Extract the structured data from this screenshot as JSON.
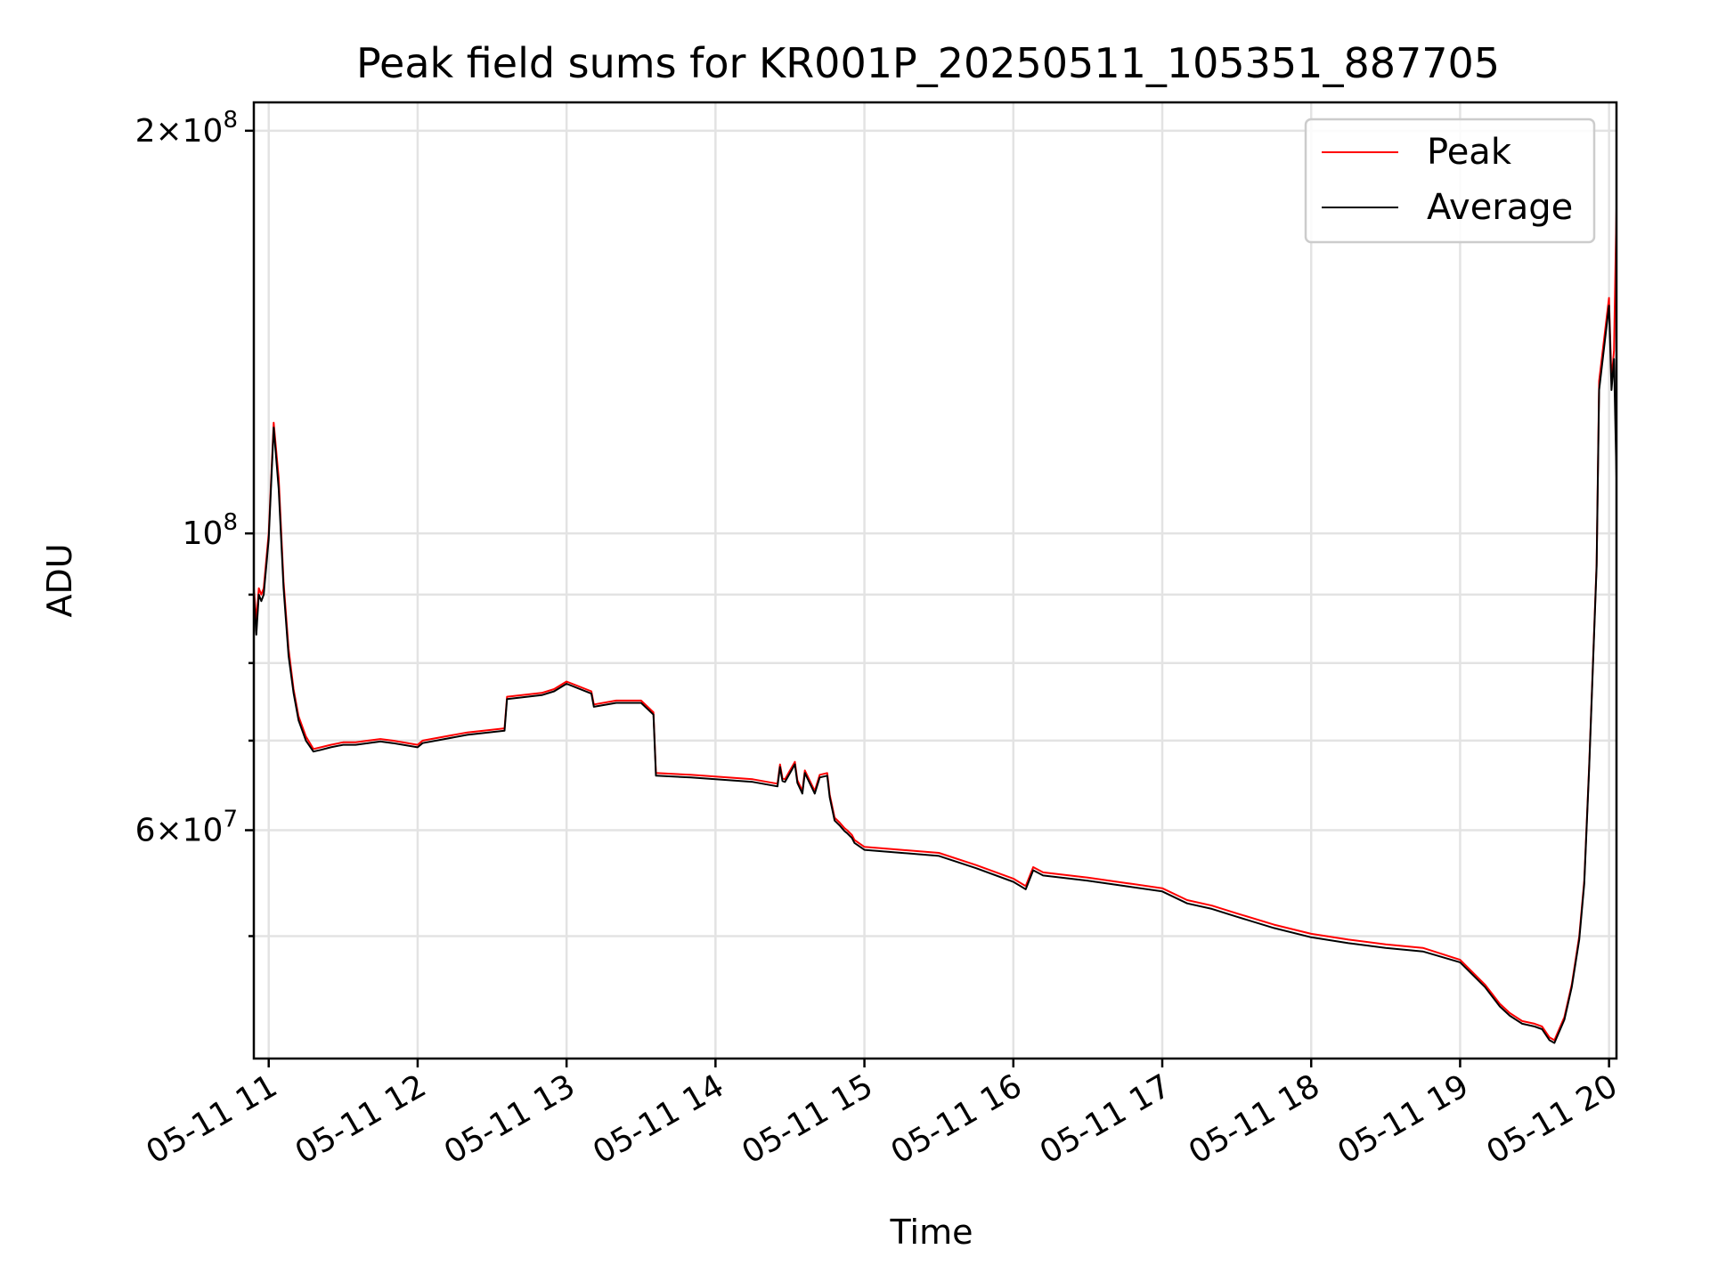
{
  "chart_data": {
    "type": "line",
    "title": "Peak field sums for KR001P_20250511_105351_887705",
    "xlabel": "Time",
    "ylabel": "ADU",
    "yscale": "log",
    "ylim": [
      40500000,
      210000000
    ],
    "xlim": [
      "2025-05-11 10:54",
      "2025-05-11 20:03"
    ],
    "x_ticks": [
      "05-11 11",
      "05-11 12",
      "05-11 13",
      "05-11 14",
      "05-11 15",
      "05-11 16",
      "05-11 17",
      "05-11 18",
      "05-11 19",
      "05-11 20"
    ],
    "y_tick_labels": [
      {
        "value": 200000000,
        "mantissa": "2",
        "exponent": "8"
      },
      {
        "value": 100000000,
        "mantissa": "",
        "exponent": "8"
      },
      {
        "value": 60000000,
        "mantissa": "6",
        "exponent": "7"
      }
    ],
    "y_minor_ticks": [
      50000000,
      70000000,
      80000000,
      90000000
    ],
    "grid": true,
    "legend": "upper right",
    "x": [
      "2025-05-11 10:54",
      "2025-05-11 10:55",
      "2025-05-11 10:56",
      "2025-05-11 10:57",
      "2025-05-11 10:58",
      "2025-05-11 11:00",
      "2025-05-11 11:02",
      "2025-05-11 11:04",
      "2025-05-11 11:06",
      "2025-05-11 11:08",
      "2025-05-11 11:10",
      "2025-05-11 11:12",
      "2025-05-11 11:15",
      "2025-05-11 11:18",
      "2025-05-11 11:21",
      "2025-05-11 11:25",
      "2025-05-11 11:30",
      "2025-05-11 11:35",
      "2025-05-11 11:40",
      "2025-05-11 11:45",
      "2025-05-11 11:50",
      "2025-05-11 12:00",
      "2025-05-11 12:02",
      "2025-05-11 12:20",
      "2025-05-11 12:35",
      "2025-05-11 12:36",
      "2025-05-11 12:50",
      "2025-05-11 12:55",
      "2025-05-11 13:00",
      "2025-05-11 13:10",
      "2025-05-11 13:11",
      "2025-05-11 13:20",
      "2025-05-11 13:30",
      "2025-05-11 13:35",
      "2025-05-11 13:36",
      "2025-05-11 13:50",
      "2025-05-11 14:00",
      "2025-05-11 14:15",
      "2025-05-11 14:25",
      "2025-05-11 14:26",
      "2025-05-11 14:27",
      "2025-05-11 14:28",
      "2025-05-11 14:32",
      "2025-05-11 14:33",
      "2025-05-11 14:35",
      "2025-05-11 14:36",
      "2025-05-11 14:40",
      "2025-05-11 14:42",
      "2025-05-11 14:45",
      "2025-05-11 14:46",
      "2025-05-11 14:48",
      "2025-05-11 14:50",
      "2025-05-11 14:52",
      "2025-05-11 14:53",
      "2025-05-11 14:55",
      "2025-05-11 14:56",
      "2025-05-11 15:00",
      "2025-05-11 15:15",
      "2025-05-11 15:30",
      "2025-05-11 15:45",
      "2025-05-11 16:00",
      "2025-05-11 16:05",
      "2025-05-11 16:08",
      "2025-05-11 16:12",
      "2025-05-11 16:30",
      "2025-05-11 16:45",
      "2025-05-11 17:00",
      "2025-05-11 17:10",
      "2025-05-11 17:20",
      "2025-05-11 17:30",
      "2025-05-11 17:45",
      "2025-05-11 18:00",
      "2025-05-11 18:15",
      "2025-05-11 18:30",
      "2025-05-11 18:45",
      "2025-05-11 19:00",
      "2025-05-11 19:10",
      "2025-05-11 19:16",
      "2025-05-11 19:20",
      "2025-05-11 19:25",
      "2025-05-11 19:30",
      "2025-05-11 19:33",
      "2025-05-11 19:36",
      "2025-05-11 19:38",
      "2025-05-11 19:42",
      "2025-05-11 19:45",
      "2025-05-11 19:48",
      "2025-05-11 19:50",
      "2025-05-11 19:52",
      "2025-05-11 19:55",
      "2025-05-11 19:56",
      "2025-05-11 20:00",
      "2025-05-11 20:01",
      "2025-05-11 20:02",
      "2025-05-11 20:03"
    ],
    "series": [
      {
        "name": "Peak",
        "color": "#ff0000",
        "values": [
          91000000,
          86000000,
          91000000,
          90000000,
          91000000,
          100000000,
          121000000,
          110000000,
          92000000,
          82000000,
          76500000,
          73000000,
          70500000,
          69000000,
          69200000,
          69500000,
          69800000,
          69800000,
          70000000,
          70200000,
          70000000,
          69500000,
          70000000,
          71000000,
          71500000,
          75500000,
          76000000,
          76500000,
          77500000,
          76200000,
          74500000,
          75000000,
          75000000,
          73500000,
          66200000,
          66000000,
          65800000,
          65500000,
          65000000,
          67200000,
          65600000,
          65500000,
          67500000,
          65400000,
          64200000,
          66500000,
          64200000,
          66000000,
          66200000,
          63800000,
          61300000,
          60800000,
          60200000,
          60000000,
          59500000,
          59000000,
          58300000,
          58000000,
          57700000,
          56500000,
          55200000,
          54500000,
          56300000,
          55800000,
          55300000,
          54800000,
          54300000,
          53200000,
          52700000,
          52000000,
          51000000,
          50200000,
          49700000,
          49300000,
          49000000,
          48000000,
          46000000,
          44500000,
          43800000,
          43200000,
          43000000,
          42800000,
          42000000,
          41800000,
          43500000,
          46000000,
          50000000,
          55000000,
          67000000,
          95000000,
          130000000,
          150000000,
          130000000,
          137000000,
          175000000
        ]
      },
      {
        "name": "Average",
        "color": "#000000",
        "values": [
          90000000,
          84000000,
          90000000,
          89000000,
          90000000,
          99000000,
          120000000,
          108000000,
          91000000,
          81000000,
          76000000,
          72500000,
          70000000,
          68700000,
          68900000,
          69200000,
          69500000,
          69500000,
          69700000,
          69900000,
          69700000,
          69200000,
          69700000,
          70700000,
          71200000,
          75200000,
          75700000,
          76200000,
          77200000,
          75900000,
          74200000,
          74700000,
          74700000,
          73200000,
          65900000,
          65700000,
          65500000,
          65200000,
          64700000,
          66900000,
          65300000,
          65200000,
          67200000,
          65100000,
          63900000,
          66200000,
          63900000,
          65700000,
          65900000,
          63500000,
          61000000,
          60500000,
          59900000,
          59700000,
          59200000,
          58700000,
          58000000,
          57700000,
          57400000,
          56200000,
          54900000,
          54200000,
          56000000,
          55500000,
          55000000,
          54500000,
          54000000,
          52900000,
          52400000,
          51700000,
          50700000,
          49900000,
          49400000,
          49000000,
          48700000,
          47800000,
          45800000,
          44300000,
          43600000,
          43000000,
          42800000,
          42600000,
          41800000,
          41600000,
          43300000,
          45800000,
          49700000,
          54700000,
          66700000,
          94500000,
          128000000,
          148000000,
          128000000,
          135000000,
          110000000
        ]
      }
    ]
  }
}
